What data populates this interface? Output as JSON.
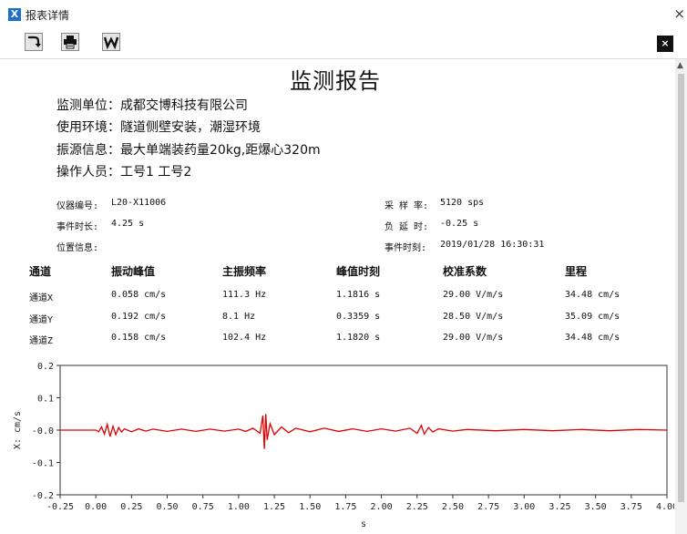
{
  "window": {
    "title": "报表详情",
    "logo_letter": "X",
    "close_glyph": "×",
    "toolbar": {
      "export_icon": "arrow-turn-icon",
      "print_icon": "printer-icon",
      "word_icon": "word-icon",
      "close_glyph": "×"
    }
  },
  "report": {
    "title": "监测报告",
    "info": [
      "监测单位：成都交博科技有限公司",
      "使用环境：隧道侧壁安装，潮湿环境",
      "振源信息：最大单端装药量20kg,距爆心320m",
      "操作人员：工号1 工号2"
    ],
    "meta": {
      "device_label": "仪器编号:",
      "device_value": "L20-X11006",
      "sample_label": "采 样 率:",
      "sample_value": "5120 sps",
      "duration_label": "事件时长:",
      "duration_value": "4.25 s",
      "delay_label": "负 延 时:",
      "delay_value": "-0.25 s",
      "location_label": "位置信息:",
      "event_time_label": "事件时刻:",
      "event_time_value": "2019/01/28 16:30:31"
    },
    "table": {
      "headers": [
        "通道",
        "振动峰值",
        "主振频率",
        "峰值时刻",
        "校准系数",
        "里程"
      ],
      "rows": [
        [
          "通道X",
          "0.058 cm/s",
          "111.3 Hz",
          "1.1816 s",
          "29.00 V/m/s",
          "34.48 cm/s"
        ],
        [
          "通道Y",
          "0.192 cm/s",
          "8.1 Hz",
          "0.3359 s",
          "28.50 V/m/s",
          "35.09 cm/s"
        ],
        [
          "通道Z",
          "0.158 cm/s",
          "102.4 Hz",
          "1.1820 s",
          "29.00 V/m/s",
          "34.48 cm/s"
        ]
      ]
    }
  },
  "chart_data": {
    "type": "line",
    "xlabel": "s",
    "ylabel": "X: cm/s",
    "xlim": [
      -0.25,
      4.0
    ],
    "ylim": [
      -0.2,
      0.2
    ],
    "x_ticks": [
      "-0.25",
      "0.00",
      "0.25",
      "0.50",
      "0.75",
      "1.00",
      "1.25",
      "1.50",
      "1.75",
      "2.00",
      "2.25",
      "2.50",
      "2.75",
      "3.00",
      "3.25",
      "3.50",
      "3.75",
      "4.00"
    ],
    "y_ticks": [
      {
        "v": 0.2,
        "label": "0.2"
      },
      {
        "v": 0.1,
        "label": "0.1"
      },
      {
        "v": 0.0,
        "label": "-0.0"
      },
      {
        "v": -0.1,
        "label": "-0.1"
      },
      {
        "v": -0.2,
        "label": "-0.2"
      }
    ],
    "grid": false,
    "series": [
      {
        "color": "#e00000",
        "x": [
          -0.25,
          0.0,
          0.02,
          0.04,
          0.06,
          0.08,
          0.1,
          0.12,
          0.14,
          0.16,
          0.18,
          0.2,
          0.25,
          0.3,
          0.35,
          0.4,
          0.5,
          0.6,
          0.7,
          0.8,
          0.9,
          1.0,
          1.05,
          1.1,
          1.15,
          1.17,
          1.18,
          1.19,
          1.2,
          1.22,
          1.25,
          1.3,
          1.35,
          1.4,
          1.5,
          1.6,
          1.7,
          1.8,
          1.9,
          2.0,
          2.1,
          2.2,
          2.25,
          2.28,
          2.3,
          2.33,
          2.36,
          2.4,
          2.5,
          2.6,
          2.8,
          3.0,
          3.2,
          3.4,
          3.6,
          3.8,
          4.0
        ],
        "y": [
          0.0,
          0.0,
          -0.005,
          0.01,
          -0.012,
          0.018,
          -0.02,
          0.012,
          -0.014,
          0.008,
          -0.006,
          0.004,
          -0.005,
          0.004,
          -0.003,
          0.003,
          -0.004,
          0.003,
          -0.004,
          0.003,
          -0.003,
          0.003,
          -0.004,
          0.006,
          -0.01,
          0.045,
          -0.058,
          0.05,
          -0.03,
          0.02,
          -0.014,
          0.01,
          -0.008,
          0.006,
          -0.005,
          0.006,
          -0.004,
          0.004,
          -0.004,
          0.004,
          -0.003,
          0.006,
          -0.01,
          0.015,
          -0.012,
          0.008,
          -0.006,
          0.004,
          -0.003,
          0.002,
          -0.002,
          0.002,
          -0.002,
          0.002,
          -0.002,
          0.002,
          0.0
        ]
      }
    ]
  }
}
